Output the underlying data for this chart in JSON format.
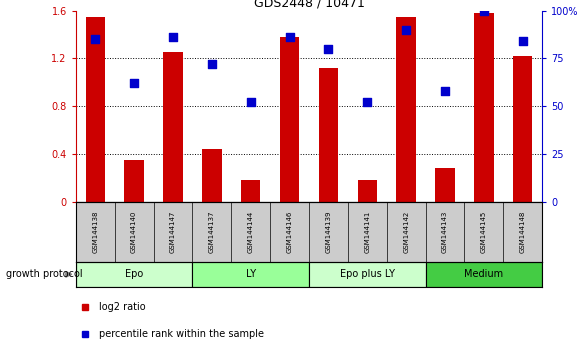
{
  "title": "GDS2448 / 10471",
  "samples": [
    "GSM144138",
    "GSM144140",
    "GSM144147",
    "GSM144137",
    "GSM144144",
    "GSM144146",
    "GSM144139",
    "GSM144141",
    "GSM144142",
    "GSM144143",
    "GSM144145",
    "GSM144148"
  ],
  "log2_ratio": [
    1.55,
    0.35,
    1.25,
    0.44,
    0.18,
    1.38,
    1.12,
    0.18,
    1.55,
    0.28,
    1.58,
    1.22
  ],
  "percentile_rank": [
    85,
    62,
    86,
    72,
    52,
    86,
    80,
    52,
    90,
    58,
    100,
    84
  ],
  "bar_color": "#cc0000",
  "dot_color": "#0000cc",
  "ylim_left": [
    0,
    1.6
  ],
  "ylim_right": [
    0,
    100
  ],
  "yticks_left": [
    0,
    0.4,
    0.8,
    1.2,
    1.6
  ],
  "yticks_right": [
    0,
    25,
    50,
    75,
    100
  ],
  "ytick_labels_left": [
    "0",
    "0.4",
    "0.8",
    "1.2",
    "1.6"
  ],
  "ytick_labels_right": [
    "0",
    "25",
    "50",
    "75",
    "100%"
  ],
  "groups": [
    {
      "label": "Epo",
      "start": 0,
      "end": 3,
      "color": "#ccffcc"
    },
    {
      "label": "LY",
      "start": 3,
      "end": 6,
      "color": "#99ff99"
    },
    {
      "label": "Epo plus LY",
      "start": 6,
      "end": 9,
      "color": "#ccffcc"
    },
    {
      "label": "Medium",
      "start": 9,
      "end": 12,
      "color": "#44cc44"
    }
  ],
  "growth_protocol_label": "growth protocol",
  "legend_bar_label": "log2 ratio",
  "legend_dot_label": "percentile rank within the sample",
  "tick_label_color_left": "#cc0000",
  "tick_label_color_right": "#0000cc",
  "bar_width": 0.5,
  "dot_size": 35,
  "bg_color": "#ffffff",
  "sample_bg_color": "#cccccc"
}
